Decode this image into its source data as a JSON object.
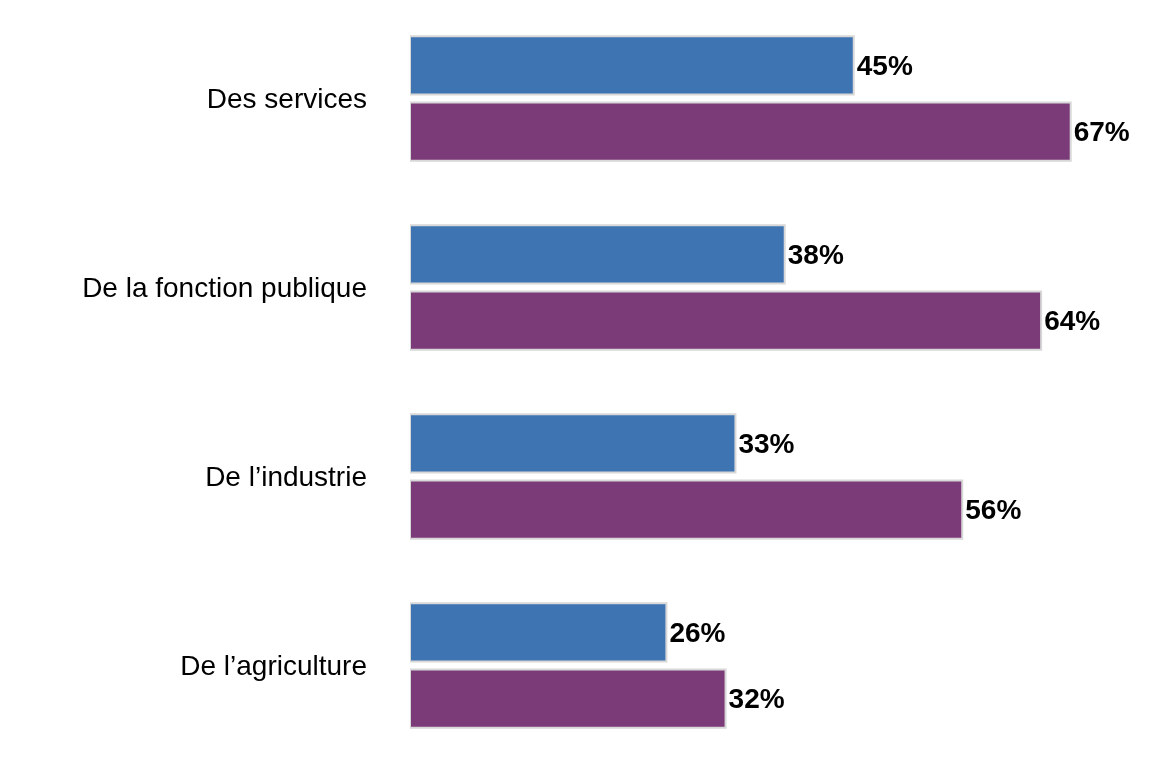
{
  "chart_data": {
    "type": "bar",
    "orientation": "horizontal",
    "categories": [
      "Des services",
      "De la fonction publique",
      "De l’industrie",
      "De l’agriculture"
    ],
    "series": [
      {
        "color": "#3f74b3",
        "values": [
          45,
          38,
          33,
          26
        ],
        "value_labels": [
          "45%",
          "38%",
          "33%",
          "26%"
        ]
      },
      {
        "color": "#7b3a78",
        "values": [
          67,
          64,
          56,
          32
        ],
        "value_labels": [
          "67%",
          "64%",
          "56%",
          "32%"
        ]
      }
    ],
    "grid": false,
    "tick_labels": "y"
  }
}
